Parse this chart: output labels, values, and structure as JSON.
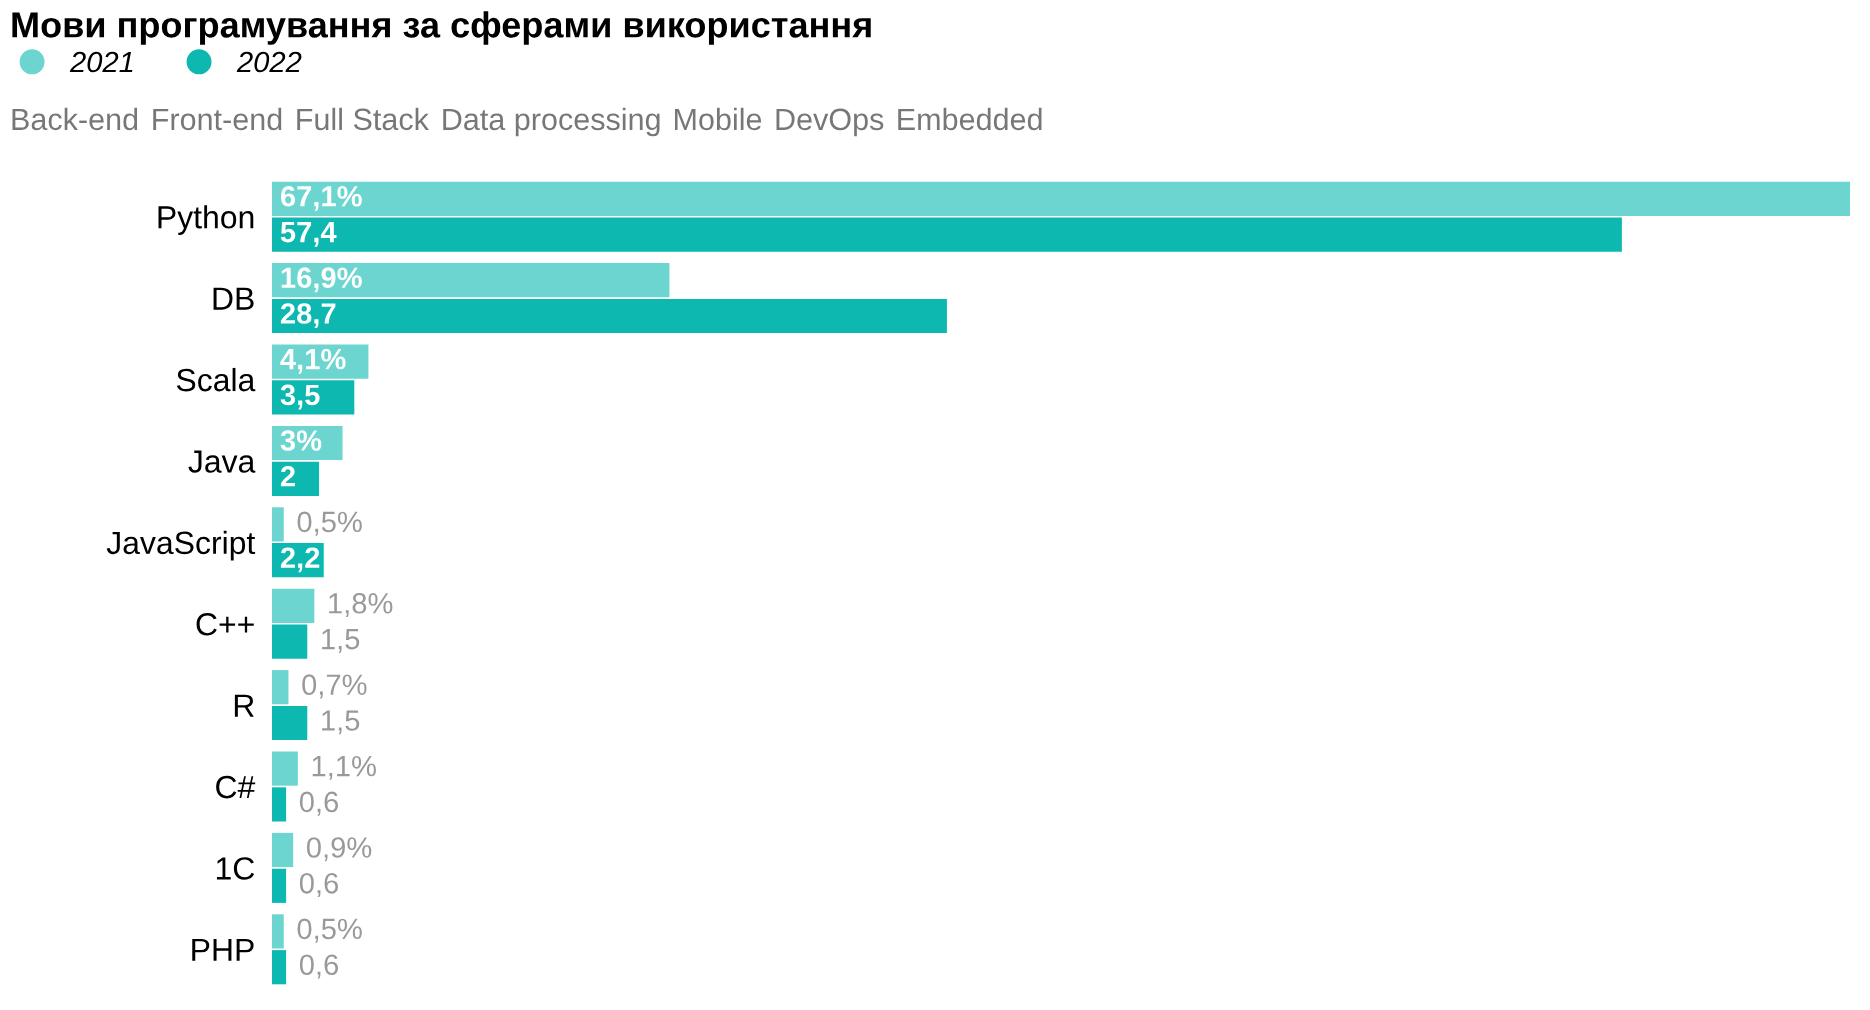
{
  "chart_data": {
    "type": "bar",
    "orientation": "horizontal",
    "title": "Мови програмування за сферами використання",
    "annotations": [
      "Back-end",
      "Front-end",
      "Full Stack",
      "Data processing",
      "Mobile",
      "DevOps",
      "Embedded"
    ],
    "categories": [
      "Python",
      "DB",
      "Scala",
      "Java",
      "JavaScript",
      "C++",
      "R",
      "C#",
      "1С",
      "PHP"
    ],
    "series": [
      {
        "name": "2021",
        "color": "#6dd5cf",
        "values": [
          67.1,
          16.9,
          4.1,
          3,
          0.5,
          1.8,
          0.7,
          1.1,
          0.9,
          0.5
        ],
        "value_labels": [
          "67,1%",
          "16,9%",
          "4,1%",
          "3%",
          "0,5%",
          "1,8%",
          "0,7%",
          "1,1%",
          "0,9%",
          "0,5%"
        ]
      },
      {
        "name": "2022",
        "color": "#0cb8b0",
        "values": [
          57.4,
          28.7,
          3.5,
          2,
          2.2,
          1.5,
          1.5,
          0.6,
          0.6,
          0.6
        ],
        "value_labels": [
          "57,4",
          "28,7",
          "3,5",
          "2",
          "2,2",
          "1,5",
          "1,5",
          "0,6",
          "0,6",
          "0,6"
        ]
      }
    ],
    "legend": "top left",
    "grid": false
  }
}
